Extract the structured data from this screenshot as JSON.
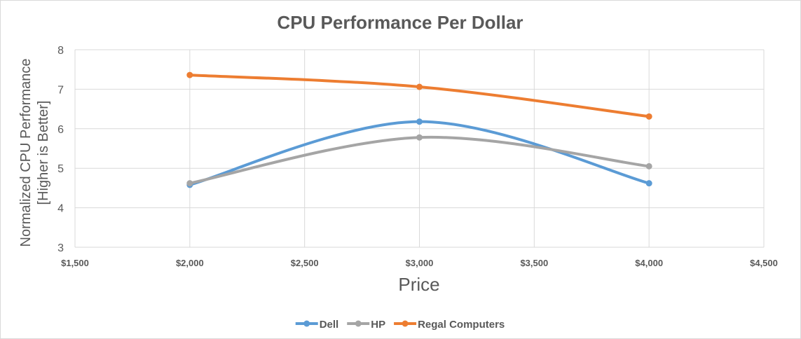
{
  "chart_data": {
    "type": "line",
    "title": "CPU Performance Per Dollar",
    "xlabel": "Price",
    "ylabel_lines": [
      "Normalized CPU Performance",
      "[Higher is Better]"
    ],
    "x": [
      2000,
      3000,
      4000
    ],
    "xlim": [
      1500,
      4500
    ],
    "x_ticks": [
      1500,
      2000,
      2500,
      3000,
      3500,
      4000,
      4500
    ],
    "x_tick_labels": [
      "$1,500",
      "$2,000",
      "$2,500",
      "$3,000",
      "$3,500",
      "$4,000",
      "$4,500"
    ],
    "ylim": [
      3,
      8
    ],
    "y_ticks": [
      3,
      4,
      5,
      6,
      7,
      8
    ],
    "y_tick_labels": [
      "3",
      "4",
      "5",
      "6",
      "7",
      "8"
    ],
    "grid": true,
    "smooth": true,
    "legend_position": "bottom",
    "series": [
      {
        "name": "Dell",
        "color": "#5b9bd5",
        "values": [
          4.58,
          6.18,
          4.62
        ]
      },
      {
        "name": "HP",
        "color": "#a5a5a5",
        "values": [
          4.62,
          5.78,
          5.05
        ]
      },
      {
        "name": "Regal Computers",
        "color": "#ed7d31",
        "values": [
          7.36,
          7.06,
          6.31
        ]
      }
    ]
  }
}
